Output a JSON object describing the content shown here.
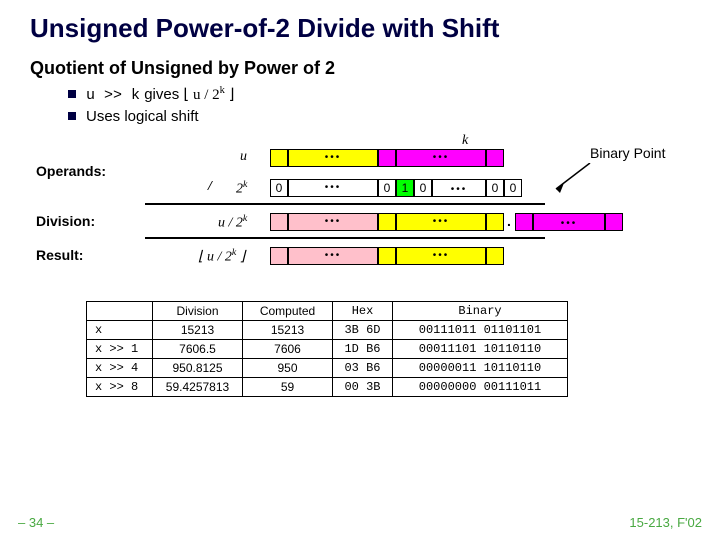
{
  "title": "Unsigned Power-of-2 Divide with Shift",
  "subtitle": "Quotient of Unsigned by Power of 2",
  "bullets": {
    "b1_code": "u >> k",
    "b1_mid": " gives ",
    "b1_expr": "⌊ u / 2",
    "b1_sup": "k",
    "b1_end": " ⌋",
    "b2": "Uses logical shift"
  },
  "diagram": {
    "k": "k",
    "u": "u",
    "binary_point": "Binary Point",
    "operands": "Operands:",
    "slash": "/",
    "twok": "2",
    "twok_sup": "k",
    "division": "Division:",
    "div_expr_l": "u / 2",
    "div_expr_sup": "k",
    "result": "Result:",
    "res_expr_l": "⌊ u / 2",
    "res_expr_sup": "k",
    "res_expr_r": " ⌋",
    "zero": "0",
    "one": "1",
    "dot": "."
  },
  "table": {
    "headers": [
      "",
      "Division",
      "Computed",
      "Hex",
      "Binary"
    ],
    "rows": [
      [
        "x",
        "15213",
        "15213",
        "3B 6D",
        "00111011 01101101"
      ],
      [
        "x >> 1",
        "7606.5",
        "7606",
        "1D B6",
        "00011101 10110110"
      ],
      [
        "x >> 4",
        "950.8125",
        "950",
        "03 B6",
        "00000011 10110110"
      ],
      [
        "x >> 8",
        "59.4257813",
        "59",
        "00 3B",
        "00000000 00111011"
      ]
    ]
  },
  "footer": {
    "left": "– 34 –",
    "right": "15-213, F'02"
  },
  "colors": {
    "title": "#000042",
    "accent": "#49a942",
    "yellow": "#ffff00",
    "magenta": "#ff00ff",
    "green": "#00ff00",
    "pink": "#ffc0cb"
  }
}
